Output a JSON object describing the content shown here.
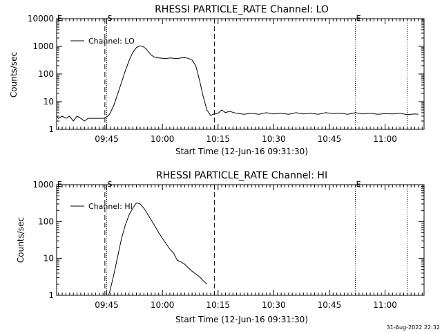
{
  "footer": {
    "timestamp": "31-Aug-2022 22:32"
  },
  "colors": {
    "line": "#000000",
    "background": "#ffffff"
  },
  "chart_data": [
    {
      "type": "line",
      "title": "RHESSI PARTICLE_RATE Channel: LO",
      "xlabel": "Start Time (12-Jun-16 09:31:30)",
      "ylabel": "Counts/sec",
      "yscale": "log",
      "ylim": [
        1,
        10000
      ],
      "xlim_minutes": [
        "09:31:30",
        "11:10:30"
      ],
      "x_ticks": [
        "09:45",
        "10:00",
        "10:15",
        "10:30",
        "10:45",
        "11:00"
      ],
      "y_ticks": [
        "1",
        "10",
        "100",
        "1000",
        "10000"
      ],
      "legend": {
        "position": "top-left",
        "entries": [
          "Channel: LO"
        ]
      },
      "series": [
        {
          "name": "Channel: LO",
          "x": [
            "09:31:30",
            "09:32",
            "09:33",
            "09:34",
            "09:35",
            "09:36",
            "09:37",
            "09:38",
            "09:39",
            "09:40",
            "09:41",
            "09:42",
            "09:43",
            "09:44",
            "09:45",
            "09:45:30",
            "09:46",
            "09:47",
            "09:48",
            "09:49",
            "09:50",
            "09:51",
            "09:52",
            "09:53",
            "09:54",
            "09:55",
            "09:56",
            "09:57",
            "09:58",
            "09:59",
            "10:00",
            "10:01",
            "10:02",
            "10:03",
            "10:04",
            "10:05",
            "10:06",
            "10:07",
            "10:08",
            "10:09",
            "10:10",
            "10:11",
            "10:12",
            "10:13",
            "10:14",
            "10:15",
            "10:16",
            "10:17",
            "10:18",
            "10:20",
            "10:22",
            "10:24",
            "10:26",
            "10:28",
            "10:30",
            "10:32",
            "10:34",
            "10:36",
            "10:38",
            "10:40",
            "10:42",
            "10:44",
            "10:46",
            "10:48",
            "10:50",
            "10:52",
            "10:54",
            "10:56",
            "10:58",
            "11:00",
            "11:02",
            "11:04",
            "11:06",
            "11:08",
            "11:09"
          ],
          "values": [
            3,
            2.5,
            3,
            2.5,
            3,
            2,
            3,
            2.5,
            2,
            2.5,
            2.5,
            2.5,
            2.5,
            2.5,
            2.8,
            3.2,
            4,
            8,
            20,
            50,
            130,
            300,
            600,
            900,
            1050,
            950,
            700,
            480,
            400,
            380,
            370,
            360,
            380,
            370,
            360,
            380,
            390,
            370,
            320,
            200,
            60,
            15,
            5,
            3.2,
            3.6,
            3.8,
            5,
            4,
            4.5,
            3.8,
            3.5,
            3.8,
            3.5,
            4,
            3.6,
            3.8,
            3.5,
            4,
            3.6,
            3.8,
            3.5,
            4,
            3.7,
            3.8,
            3.5,
            4,
            3.6,
            3.8,
            3.5,
            3.7,
            3.6,
            3.8,
            3.4,
            3.6,
            3.5
          ]
        }
      ],
      "markers": [
        {
          "label": "E",
          "x": "09:31:30",
          "style": "dotted"
        },
        {
          "label": "S",
          "x": "09:45",
          "style": "dotted"
        },
        {
          "label": "",
          "x": "09:44:30",
          "style": "dashed"
        },
        {
          "label": "",
          "x": "10:14",
          "style": "dashed"
        },
        {
          "label": "E",
          "x": "10:52",
          "style": "dotted"
        },
        {
          "label": "",
          "x": "11:06",
          "style": "dotted"
        }
      ]
    },
    {
      "type": "line",
      "title": "RHESSI PARTICLE_RATE Channel: HI",
      "xlabel": "Start Time (12-Jun-16 09:31:30)",
      "ylabel": "Counts/sec",
      "yscale": "log",
      "ylim": [
        1,
        1000
      ],
      "xlim_minutes": [
        "09:31:30",
        "11:10:30"
      ],
      "x_ticks": [
        "09:45",
        "10:00",
        "10:15",
        "10:30",
        "10:45",
        "11:00"
      ],
      "y_ticks": [
        "1",
        "10",
        "100",
        "1000"
      ],
      "legend": {
        "position": "top-left",
        "entries": [
          "Channel: HI"
        ]
      },
      "series": [
        {
          "name": "Channel: HI",
          "x": [
            "09:45:30",
            "09:46",
            "09:47",
            "09:48",
            "09:49",
            "09:50",
            "09:51",
            "09:52",
            "09:53",
            "09:54",
            "09:55",
            "09:56",
            "09:57",
            "09:58",
            "09:59",
            "10:00",
            "10:01",
            "10:02",
            "10:03",
            "10:04",
            "10:05",
            "10:06",
            "10:07",
            "10:08",
            "10:09",
            "10:10",
            "10:11",
            "10:12"
          ],
          "values": [
            1,
            1.5,
            4,
            12,
            35,
            80,
            150,
            230,
            320,
            300,
            230,
            160,
            110,
            75,
            50,
            35,
            25,
            18,
            14,
            9,
            8,
            7,
            5.5,
            4.5,
            3.8,
            3.2,
            2.5,
            2
          ]
        }
      ],
      "markers": [
        {
          "label": "E",
          "x": "09:31:30",
          "style": "dotted"
        },
        {
          "label": "S",
          "x": "09:45",
          "style": "dotted"
        },
        {
          "label": "",
          "x": "09:44:30",
          "style": "dashed"
        },
        {
          "label": "",
          "x": "10:14",
          "style": "dashed"
        },
        {
          "label": "E",
          "x": "10:52",
          "style": "dotted"
        },
        {
          "label": "",
          "x": "11:06",
          "style": "dotted"
        }
      ]
    }
  ]
}
